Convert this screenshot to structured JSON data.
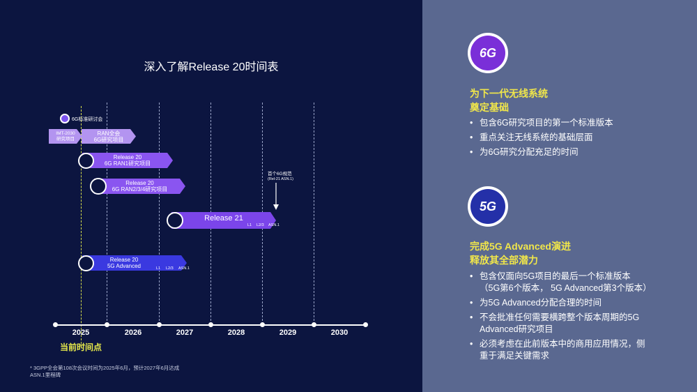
{
  "title": "深入了解Release 20时间表",
  "years": [
    "2025",
    "2026",
    "2027",
    "2028",
    "2029",
    "2030"
  ],
  "current_time_label": "当前时间点",
  "timeline": {
    "workshop": "6G标准研讨会",
    "imt2030": "IMT-2030\n研究项目",
    "ran_plenary": "RAN全会\n6G研究项目",
    "rel20_ran1": "Release 20\n6G RAN1研究项目",
    "rel20_ran234": "Release 20\n6G RAN2/3/4研究项目",
    "rel21": "Release 21",
    "rel21_marks": [
      "L1",
      "L2/3",
      "ASN.1"
    ],
    "first_6g_spec": "首个6G规范",
    "first_6g_spec_sub": "(Rel-21 ASN.1)",
    "rel20_5g": "Release 20\n5G Advanced",
    "rel20_5g_marks": [
      "L1",
      "L2/3",
      "ASN.1"
    ]
  },
  "footnote": "* 3GPP全会第108次会议时间为2025年6月，预计2027年6月达成ASN.1里程碑",
  "right": {
    "icon_6g": "6G",
    "heading_6g": [
      "为下一代无线系统",
      "奠定基础"
    ],
    "bullets_6g": [
      "包含6G研究项目的第一个标准版本",
      "重点关注无线系统的基础层面",
      "为6G研究分配充足的时间"
    ],
    "icon_5g": "5G",
    "heading_5g": [
      "完成5G Advanced演进",
      "释放其全部潜力"
    ],
    "bullets_5g": [
      "包含仅面向5G项目的最后一个标准版本（5G第6个版本， 5G Advanced第3个版本）",
      "为5G Advanced分配合理的时间",
      "不会批准任何需要横跨整个版本周期的5G Advanced研究项目",
      "必须考虑在此前版本中的商用应用情况，侧重于满足关键需求"
    ]
  },
  "colors": {
    "background": "#0c1540",
    "panel": "#5a6890",
    "accent_yellow": "#f0e64a",
    "purple": "#8a55f0",
    "blue": "#3a39e0"
  }
}
